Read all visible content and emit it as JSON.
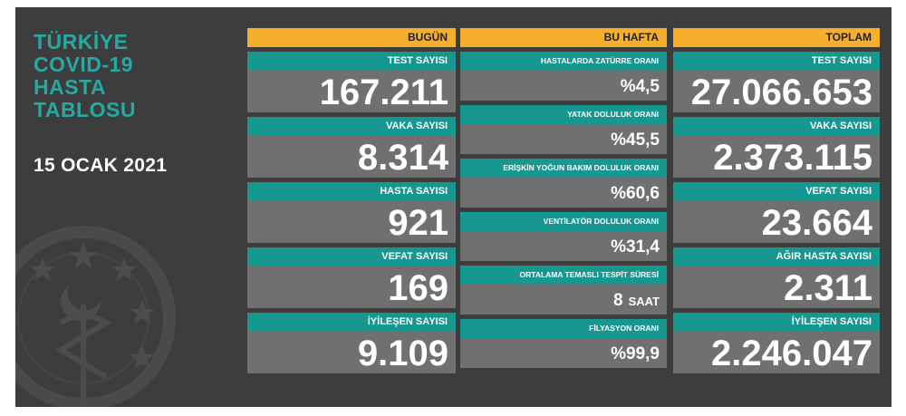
{
  "title": {
    "lines": [
      "TÜRKİYE",
      "COVID-19",
      "HASTA",
      "TABLOSU"
    ]
  },
  "date": "15 OCAK 2021",
  "colors": {
    "background": "#3d3d3d",
    "header": "#f6ae2d",
    "label": "#16978f",
    "value_box": "#707070",
    "title": "#27a9a3"
  },
  "today": {
    "header": "BUGÜN",
    "items": [
      {
        "label": "TEST SAYISI",
        "value": "167.211"
      },
      {
        "label": "VAKA SAYISI",
        "value": "8.314"
      },
      {
        "label": "HASTA SAYISI",
        "value": "921"
      },
      {
        "label": "VEFAT SAYISI",
        "value": "169"
      },
      {
        "label": "İYİLEŞEN SAYISI",
        "value": "9.109"
      }
    ]
  },
  "week": {
    "header": "BU HAFTA",
    "items": [
      {
        "label": "HASTALARDA ZATÜRRE ORANI",
        "value": "%4,5"
      },
      {
        "label": "YATAK DOLULUK ORANI",
        "value": "%45,5"
      },
      {
        "label": "ERİŞKİN YOĞUN BAKIM DOLULUK ORANI",
        "value": "%60,6"
      },
      {
        "label": "VENTİLATÖR DOLULUK ORANI",
        "value": "%31,4"
      },
      {
        "label": "ORTALAMA TEMASLI TESPİT SÜRESİ",
        "value": "8",
        "unit": "SAAT"
      },
      {
        "label": "FİLYASYON ORANI",
        "value": "%99,9"
      }
    ]
  },
  "total": {
    "header": "TOPLAM",
    "items": [
      {
        "label": "TEST SAYISI",
        "value": "27.066.653"
      },
      {
        "label": "VAKA SAYISI",
        "value": "2.373.115"
      },
      {
        "label": "VEFAT SAYISI",
        "value": "23.664"
      },
      {
        "label": "AĞIR HASTA SAYISI",
        "value": "2.311"
      },
      {
        "label": "İYİLEŞEN SAYISI",
        "value": "2.246.047"
      }
    ]
  }
}
